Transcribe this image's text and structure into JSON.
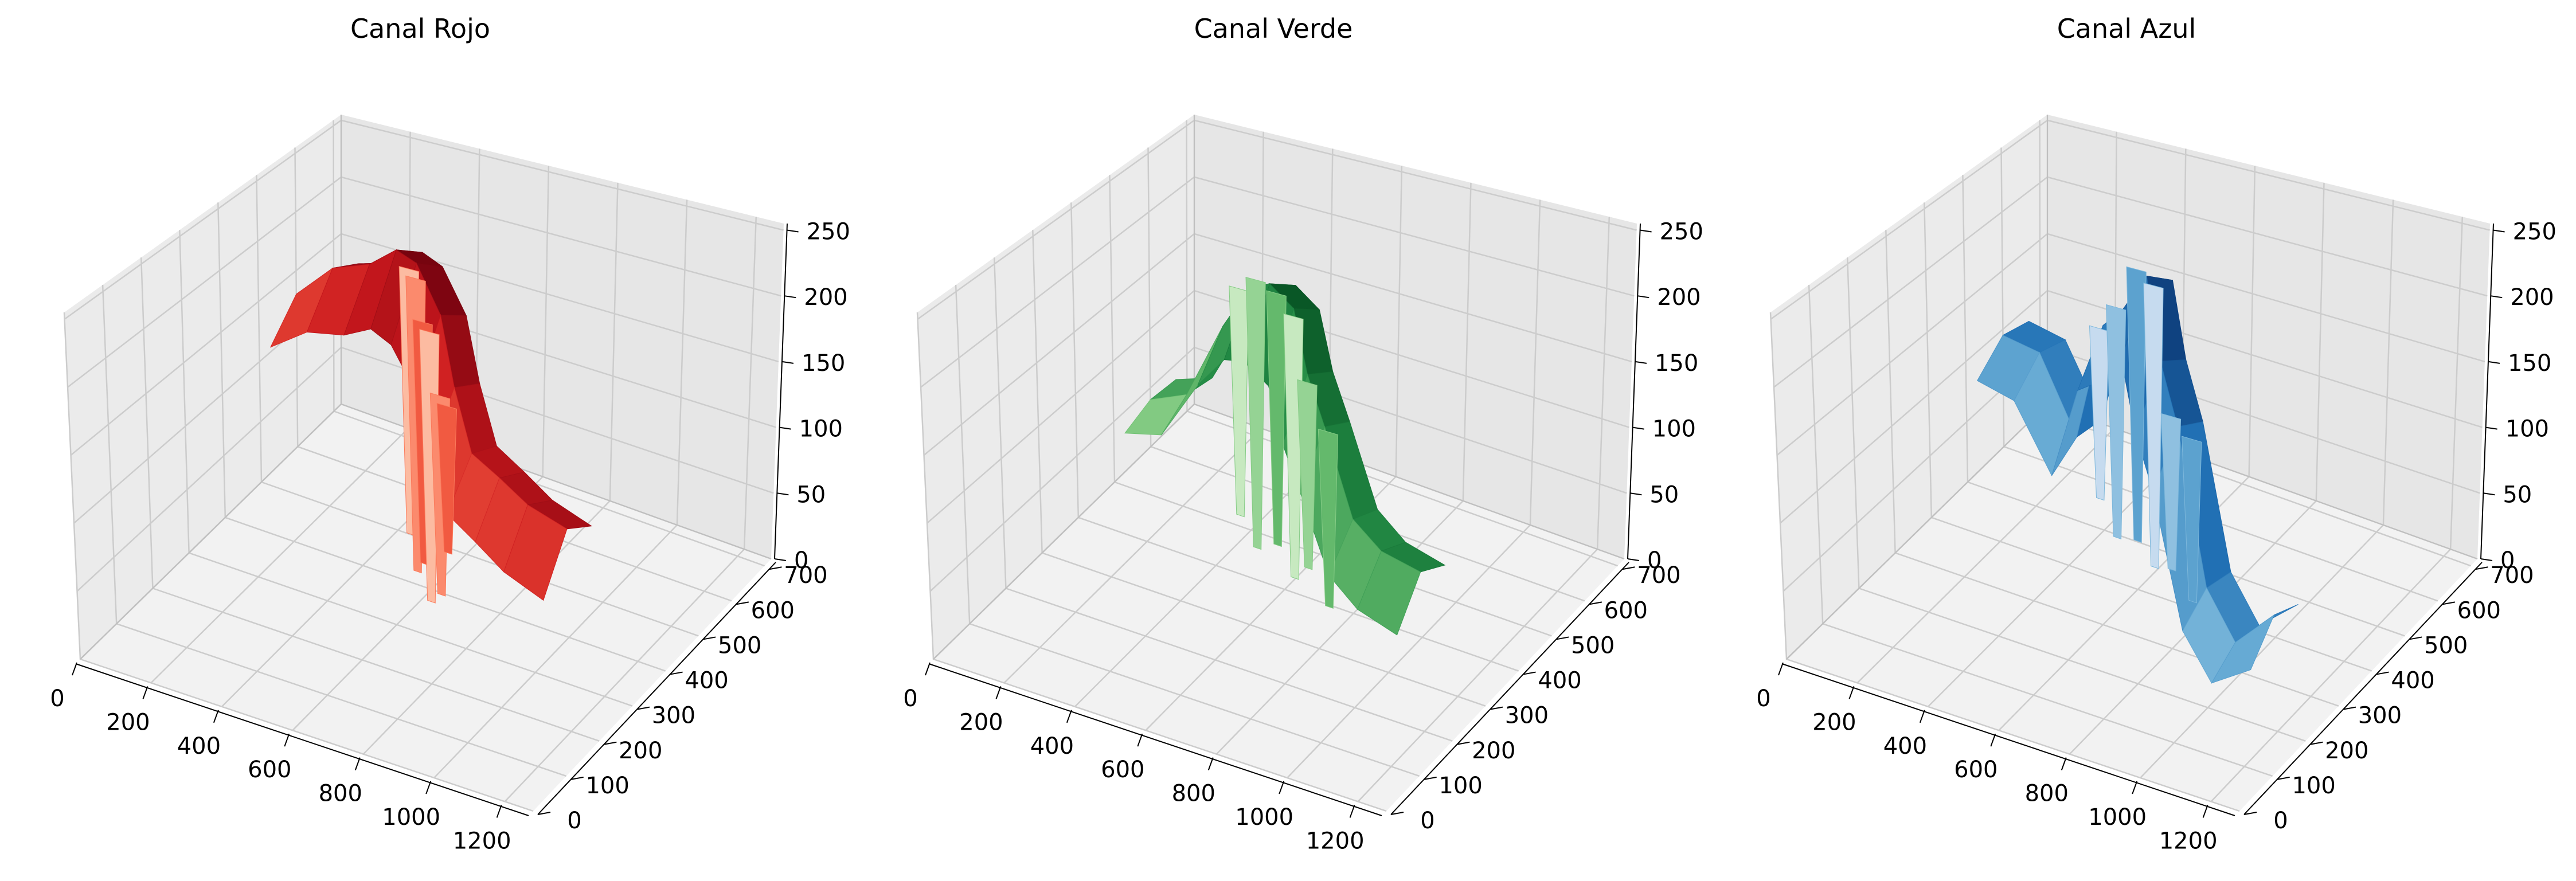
{
  "chart_data": [
    {
      "type": "surface3d",
      "title": "Canal Rojo",
      "colormap": "Reds",
      "colors": [
        "#fff5f0",
        "#fcbba1",
        "#fb6a4a",
        "#cb181d",
        "#67000d"
      ],
      "x_ticks": [
        "0",
        "200",
        "400",
        "600",
        "800",
        "1000",
        "1200"
      ],
      "y_ticks": [
        "0",
        "100",
        "200",
        "300",
        "400",
        "500",
        "600",
        "700"
      ],
      "z_ticks": [
        "0",
        "50",
        "100",
        "150",
        "200",
        "250"
      ],
      "xlim": [
        0,
        1280
      ],
      "ylim": [
        0,
        720
      ],
      "zlim": [
        0,
        255
      ],
      "profile": [
        {
          "x": 0,
          "y": 600,
          "z": 130
        },
        {
          "x": 150,
          "y": 560,
          "z": 175
        },
        {
          "x": 300,
          "y": 520,
          "z": 200
        },
        {
          "x": 420,
          "y": 480,
          "z": 230
        },
        {
          "x": 520,
          "y": 440,
          "z": 236
        },
        {
          "x": 620,
          "y": 410,
          "z": 210
        },
        {
          "x": 700,
          "y": 370,
          "z": 170
        },
        {
          "x": 800,
          "y": 320,
          "z": 140
        },
        {
          "x": 950,
          "y": 250,
          "z": 150
        },
        {
          "x": 1100,
          "y": 180,
          "z": 158
        },
        {
          "x": 1280,
          "y": 110,
          "z": 170
        }
      ],
      "spikes": [
        {
          "x": 520,
          "y": 420,
          "z": 30
        },
        {
          "x": 560,
          "y": 400,
          "z": 10
        },
        {
          "x": 600,
          "y": 380,
          "z": 25
        },
        {
          "x": 640,
          "y": 360,
          "z": 5
        },
        {
          "x": 690,
          "y": 340,
          "z": 20
        },
        {
          "x": 730,
          "y": 320,
          "z": 60
        }
      ],
      "grid": true
    },
    {
      "type": "surface3d",
      "title": "Canal Verde",
      "colormap": "Greens",
      "colors": [
        "#f7fcf5",
        "#c7e9c0",
        "#74c476",
        "#238b45",
        "#00441b"
      ],
      "x_ticks": [
        "0",
        "200",
        "400",
        "600",
        "800",
        "1000",
        "1200"
      ],
      "y_ticks": [
        "0",
        "100",
        "200",
        "300",
        "400",
        "500",
        "600",
        "700"
      ],
      "z_ticks": [
        "0",
        "50",
        "100",
        "150",
        "200",
        "250"
      ],
      "xlim": [
        0,
        1280
      ],
      "ylim": [
        0,
        720
      ],
      "zlim": [
        0,
        255
      ],
      "profile": [
        {
          "x": 0,
          "y": 600,
          "z": 40
        },
        {
          "x": 150,
          "y": 560,
          "z": 70
        },
        {
          "x": 300,
          "y": 520,
          "z": 150
        },
        {
          "x": 420,
          "y": 480,
          "z": 200
        },
        {
          "x": 520,
          "y": 440,
          "z": 220
        },
        {
          "x": 620,
          "y": 410,
          "z": 215
        },
        {
          "x": 700,
          "y": 370,
          "z": 180
        },
        {
          "x": 800,
          "y": 320,
          "z": 160
        },
        {
          "x": 950,
          "y": 250,
          "z": 120
        },
        {
          "x": 1100,
          "y": 180,
          "z": 125
        },
        {
          "x": 1280,
          "y": 110,
          "z": 140
        }
      ],
      "spikes": [
        {
          "x": 400,
          "y": 470,
          "z": 20
        },
        {
          "x": 480,
          "y": 440,
          "z": 10
        },
        {
          "x": 560,
          "y": 420,
          "z": 25
        },
        {
          "x": 640,
          "y": 390,
          "z": 15
        },
        {
          "x": 720,
          "y": 350,
          "z": 40
        },
        {
          "x": 820,
          "y": 310,
          "z": 30
        }
      ],
      "grid": true
    },
    {
      "type": "surface3d",
      "title": "Canal Azul",
      "colormap": "Blues",
      "colors": [
        "#f7fbff",
        "#c6dbef",
        "#6baed6",
        "#2171b5",
        "#08306b"
      ],
      "x_ticks": [
        "0",
        "200",
        "400",
        "600",
        "800",
        "1000",
        "1200"
      ],
      "y_ticks": [
        "0",
        "100",
        "200",
        "300",
        "400",
        "500",
        "600",
        "700"
      ],
      "z_ticks": [
        "0",
        "50",
        "100",
        "150",
        "200",
        "250"
      ],
      "xlim": [
        0,
        1280
      ],
      "ylim": [
        0,
        720
      ],
      "zlim": [
        0,
        255
      ],
      "profile": [
        {
          "x": 0,
          "y": 600,
          "z": 95
        },
        {
          "x": 150,
          "y": 560,
          "z": 105
        },
        {
          "x": 300,
          "y": 520,
          "z": 60
        },
        {
          "x": 420,
          "y": 480,
          "z": 170
        },
        {
          "x": 520,
          "y": 440,
          "z": 200
        },
        {
          "x": 620,
          "y": 410,
          "z": 240
        },
        {
          "x": 700,
          "y": 370,
          "z": 190
        },
        {
          "x": 800,
          "y": 320,
          "z": 160
        },
        {
          "x": 950,
          "y": 250,
          "z": 70
        },
        {
          "x": 1100,
          "y": 180,
          "z": 60
        },
        {
          "x": 1280,
          "y": 110,
          "z": 110
        }
      ],
      "spikes": [
        {
          "x": 420,
          "y": 470,
          "z": 35
        },
        {
          "x": 500,
          "y": 440,
          "z": 20
        },
        {
          "x": 580,
          "y": 420,
          "z": 30
        },
        {
          "x": 660,
          "y": 390,
          "z": 25
        },
        {
          "x": 760,
          "y": 340,
          "z": 45
        },
        {
          "x": 860,
          "y": 300,
          "z": 40
        }
      ],
      "grid": true
    }
  ]
}
